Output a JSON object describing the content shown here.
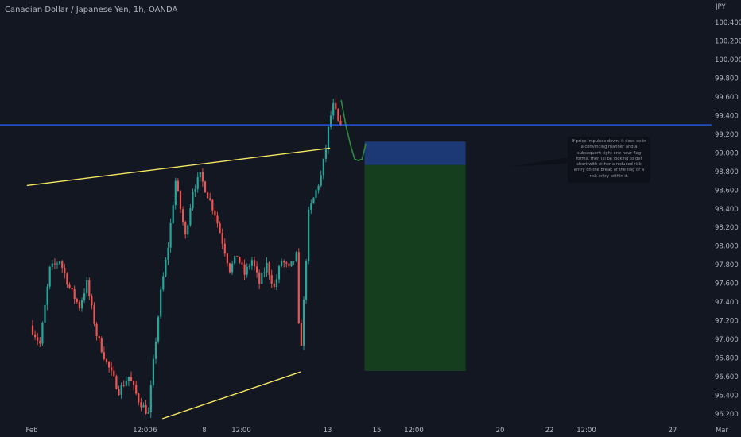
{
  "title": "Canadian Dollar / Japanese Yen, 1h, OANDA",
  "note": "If price impulses down, it does so in a convincing manner and a subsequent tight one hour flag forms, then I'll be looking to get short with either a reduced risk entry on the break of the flag or a risk entry within it.",
  "colors": {
    "background": "#131722",
    "up": "#26a69a",
    "down": "#ef5350",
    "trendline": "#f5e663",
    "horizontal_line": "#2962ff",
    "stop_zone": "#1c3a7a",
    "target_zone": "#15401f",
    "projection": "#2e8b3e",
    "axis_text": "#b2b5be"
  },
  "chart_data": {
    "type": "candlestick",
    "currency": "JPY",
    "y_ticks": [
      "100.400",
      "100.200",
      "100.000",
      "99.800",
      "99.600",
      "99.400",
      "99.200",
      "99.000",
      "98.800",
      "98.600",
      "98.400",
      "98.200",
      "98.000",
      "97.800",
      "97.600",
      "97.400",
      "97.200",
      "97.000",
      "96.800",
      "96.600",
      "96.400",
      "96.200"
    ],
    "ylim": [
      96.14,
      100.66
    ],
    "x_ticks": [
      {
        "label": "Feb",
        "day": 0
      },
      {
        "label": "12:00",
        "day": 4.5
      },
      {
        "label": "6",
        "day": 5
      },
      {
        "label": "8",
        "day": 7
      },
      {
        "label": "12:00",
        "day": 8.5
      },
      {
        "label": "13",
        "day": 12
      },
      {
        "label": "15",
        "day": 14
      },
      {
        "label": "12:00",
        "day": 15.5
      },
      {
        "label": "20",
        "day": 19
      },
      {
        "label": "22",
        "day": 21
      },
      {
        "label": "12:00",
        "day": 22.5
      },
      {
        "label": "27",
        "day": 26
      },
      {
        "label": "Mar",
        "day": 28
      }
    ],
    "price_path": [
      [
        0,
        97.15
      ],
      [
        0.4,
        96.95
      ],
      [
        0.8,
        97.75
      ],
      [
        1.2,
        97.85
      ],
      [
        1.6,
        97.55
      ],
      [
        2.0,
        97.35
      ],
      [
        2.3,
        97.6
      ],
      [
        2.7,
        97.05
      ],
      [
        3.1,
        96.75
      ],
      [
        3.6,
        96.45
      ],
      [
        4.0,
        96.6
      ],
      [
        4.4,
        96.35
      ],
      [
        4.8,
        96.2
      ],
      [
        5.0,
        96.75
      ],
      [
        5.3,
        97.5
      ],
      [
        5.6,
        98.0
      ],
      [
        5.9,
        98.7
      ],
      [
        6.1,
        98.4
      ],
      [
        6.3,
        98.1
      ],
      [
        6.6,
        98.6
      ],
      [
        6.9,
        98.75
      ],
      [
        7.2,
        98.55
      ],
      [
        7.5,
        98.35
      ],
      [
        7.8,
        98.05
      ],
      [
        8.1,
        97.75
      ],
      [
        8.4,
        97.9
      ],
      [
        8.7,
        97.7
      ],
      [
        9.0,
        97.85
      ],
      [
        9.3,
        97.6
      ],
      [
        9.6,
        97.8
      ],
      [
        9.9,
        97.55
      ],
      [
        10.2,
        97.85
      ],
      [
        10.5,
        97.75
      ],
      [
        10.8,
        97.9
      ],
      [
        10.95,
        96.75
      ],
      [
        11.1,
        97.4
      ],
      [
        11.3,
        98.35
      ],
      [
        11.55,
        98.55
      ],
      [
        11.8,
        98.75
      ],
      [
        12.0,
        99.05
      ],
      [
        12.15,
        99.35
      ],
      [
        12.3,
        99.5
      ],
      [
        12.45,
        99.4
      ],
      [
        12.55,
        99.25
      ]
    ],
    "projection_path": [
      [
        12.55,
        99.55
      ],
      [
        12.75,
        99.3
      ],
      [
        12.95,
        99.05
      ],
      [
        13.1,
        98.95
      ],
      [
        13.25,
        98.9
      ],
      [
        13.4,
        98.95
      ],
      [
        13.55,
        99.08
      ]
    ],
    "trendline_upper": [
      [
        -0.2,
        98.65
      ],
      [
        12.1,
        99.05
      ]
    ],
    "trendline_lower": [
      [
        5.3,
        96.15
      ],
      [
        10.9,
        96.65
      ]
    ],
    "horizontal_level": 99.3,
    "short_position": {
      "x_start": 13.5,
      "x_end": 17.6,
      "stop": 99.12,
      "entry": 98.87,
      "target": 96.66
    }
  }
}
